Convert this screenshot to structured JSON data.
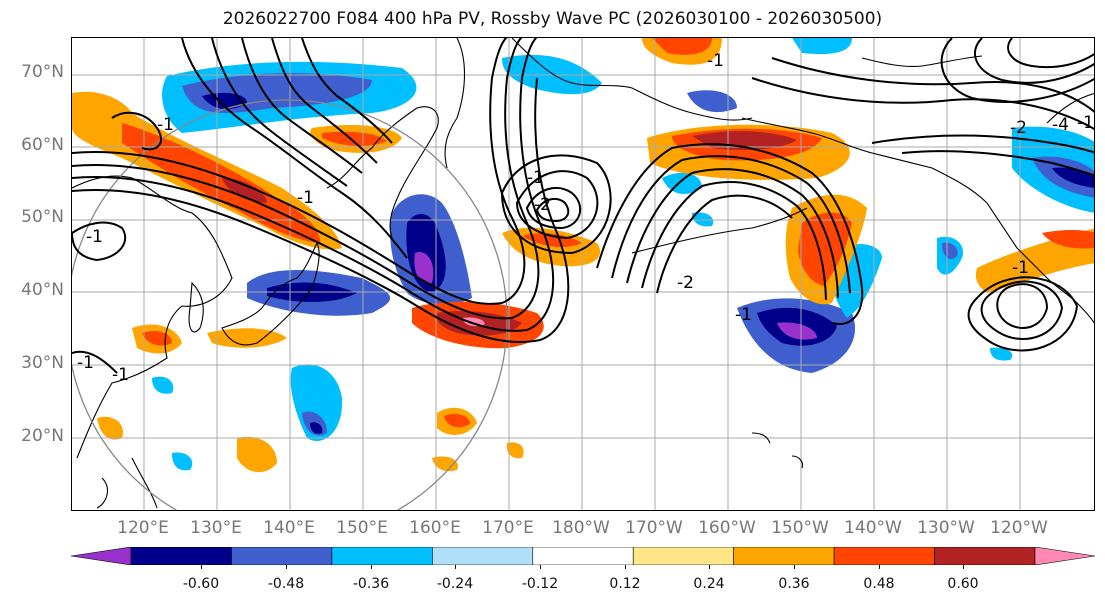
{
  "title": "2026022700 F084 400 hPa PV, Rossby Wave PC (2026030100 - 2026030500)",
  "map": {
    "lat_labels": [
      "70°N",
      "60°N",
      "50°N",
      "40°N",
      "30°N",
      "20°N"
    ],
    "lon_labels": [
      "120°E",
      "130°E",
      "140°E",
      "150°E",
      "160°E",
      "170°E",
      "180°W",
      "170°W",
      "160°W",
      "150°W",
      "140°W",
      "130°W",
      "120°W"
    ],
    "contour_labels": [
      "-1",
      "-1",
      "-1",
      "-1",
      "-1",
      "-1",
      "-1",
      "-1",
      "-1",
      "-1",
      "-2",
      "-2",
      "-2",
      "-4"
    ],
    "colors": {
      "land_outline": "#000000",
      "grid": "#aaaaaa",
      "circle": "#888888"
    }
  },
  "colorbar": {
    "ticks": [
      "-0.60",
      "-0.48",
      "-0.36",
      "-0.24",
      "-0.12",
      "0.12",
      "0.24",
      "0.36",
      "0.48",
      "0.60"
    ],
    "colors": [
      "#9932cc",
      "#00008b",
      "#3e5fcd",
      "#00bfff",
      "#b0e0f7",
      "#ffffff",
      "#ffe787",
      "#ffa500",
      "#ff4500",
      "#b22222",
      "#ff88b5"
    ]
  }
}
